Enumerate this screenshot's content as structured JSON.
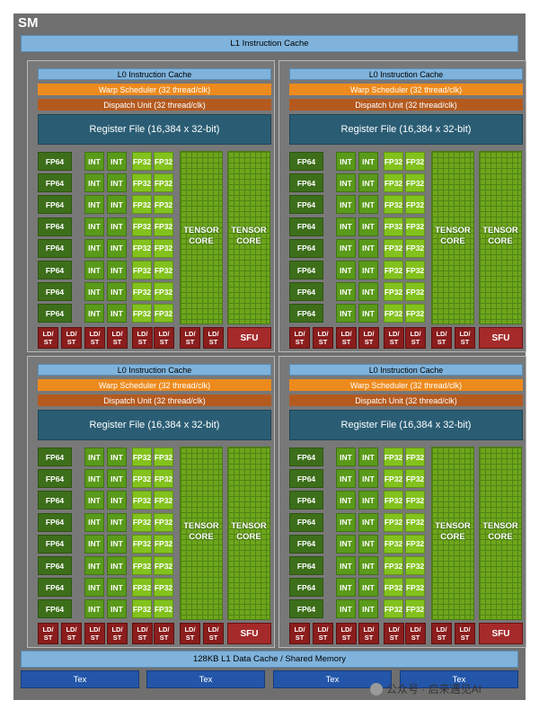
{
  "sm_title": "SM",
  "l1_cache": "L1 Instruction Cache",
  "quadrant": {
    "l0_cache": "L0 Instruction Cache",
    "warp_scheduler": "Warp Scheduler (32 thread/clk)",
    "dispatch_unit": "Dispatch Unit (32 thread/clk)",
    "register_file": "Register File (16,384 x 32-bit)",
    "fp64": "FP64",
    "int": "INT",
    "fp32": "FP32",
    "tensor_line1": "TENSOR",
    "tensor_line2": "CORE",
    "ldst_line1": "LD/",
    "ldst_line2": "ST",
    "sfu": "SFU"
  },
  "l1_data_cache": "128KB L1 Data Cache / Shared Memory",
  "tex_units": [
    "Tex",
    "Tex",
    "Tex",
    "Tex"
  ],
  "watermark": "公众号 · 启来遇见AI",
  "colors": {
    "sm_background": "#6f6f6f",
    "cache": "#7fb3dc",
    "warp_scheduler": "#ed8a1d",
    "dispatch_unit": "#b45a1f",
    "register_file": "#2a5d74",
    "fp64": "#3d6e1a",
    "int": "#5a9a1a",
    "fp32": "#83c21d",
    "tensor_core": "#6ea51c",
    "ldst": "#8b1d1d",
    "sfu": "#a52a2a",
    "tex": "#2356a8"
  }
}
